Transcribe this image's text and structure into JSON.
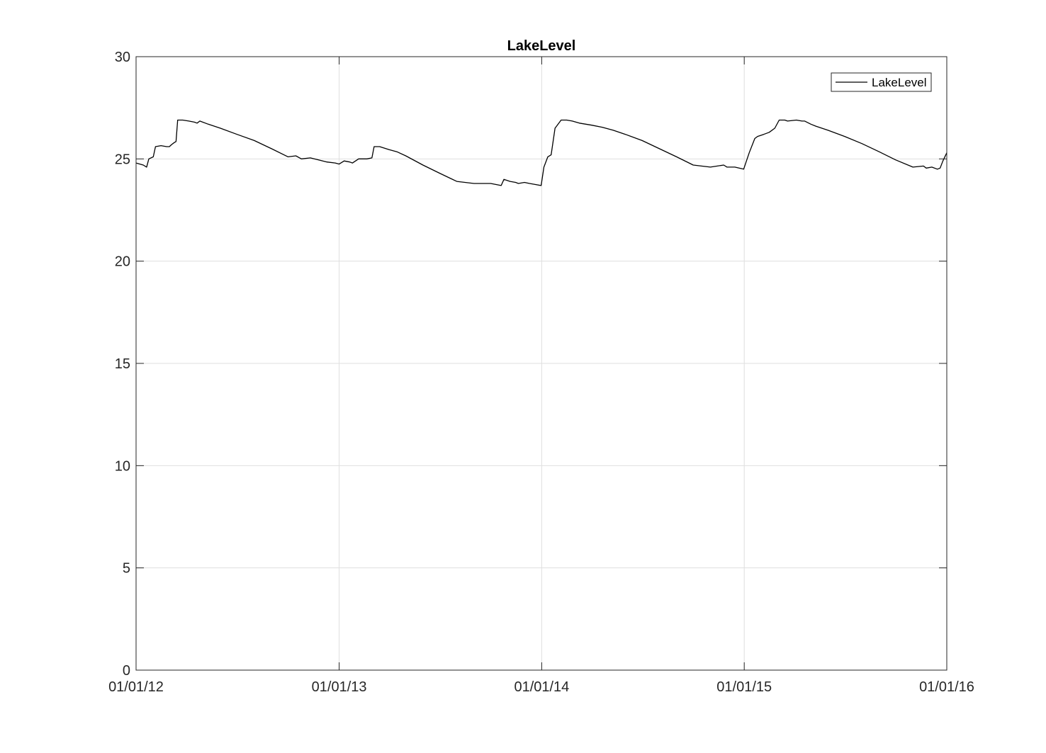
{
  "chart_data": {
    "type": "line",
    "title": "LakeLevel",
    "xlabel": "",
    "ylabel": "",
    "x_type": "date",
    "xlim": [
      "2012-01-01",
      "2016-01-01"
    ],
    "ylim": [
      0,
      30
    ],
    "xticks": [
      "2012-01-01",
      "2013-01-01",
      "2014-01-01",
      "2015-01-01",
      "2016-01-01"
    ],
    "xtick_labels": [
      "01/01/12",
      "01/01/13",
      "01/01/14",
      "01/01/15",
      "01/01/16"
    ],
    "yticks": [
      0,
      5,
      10,
      15,
      20,
      25,
      30
    ],
    "ytick_labels": [
      "0",
      "5",
      "10",
      "15",
      "20",
      "25",
      "30"
    ],
    "grid": true,
    "legend": {
      "placement": "top-right",
      "entries": [
        "LakeLevel"
      ]
    },
    "series": [
      {
        "name": "LakeLevel",
        "color": "#000000",
        "x": [
          "2012-01-01",
          "2012-01-14",
          "2012-01-20",
          "2012-01-24",
          "2012-02-01",
          "2012-02-05",
          "2012-02-15",
          "2012-02-25",
          "2012-03-01",
          "2012-03-05",
          "2012-03-10",
          "2012-03-13",
          "2012-03-16",
          "2012-03-25",
          "2012-04-05",
          "2012-04-15",
          "2012-04-20",
          "2012-04-25",
          "2012-05-10",
          "2012-06-01",
          "2012-07-01",
          "2012-08-01",
          "2012-09-01",
          "2012-10-01",
          "2012-10-15",
          "2012-10-25",
          "2012-11-10",
          "2012-11-25",
          "2012-12-10",
          "2012-12-25",
          "2013-01-01",
          "2013-01-10",
          "2013-01-20",
          "2013-01-25",
          "2013-02-05",
          "2013-02-20",
          "2013-03-01",
          "2013-03-05",
          "2013-03-15",
          "2013-04-01",
          "2013-04-15",
          "2013-05-01",
          "2013-06-01",
          "2013-07-01",
          "2013-08-01",
          "2013-09-01",
          "2013-10-01",
          "2013-10-20",
          "2013-10-25",
          "2013-11-05",
          "2013-11-15",
          "2013-11-20",
          "2013-12-01",
          "2013-12-10",
          "2013-12-20",
          "2013-12-31",
          "2014-01-05",
          "2014-01-12",
          "2014-01-18",
          "2014-01-25",
          "2014-02-05",
          "2014-02-15",
          "2014-02-25",
          "2014-03-10",
          "2014-04-01",
          "2014-04-20",
          "2014-05-10",
          "2014-06-01",
          "2014-07-01",
          "2014-08-01",
          "2014-09-01",
          "2014-10-01",
          "2014-11-01",
          "2014-11-25",
          "2014-12-01",
          "2014-12-15",
          "2014-12-31",
          "2015-01-05",
          "2015-01-10",
          "2015-01-20",
          "2015-01-25",
          "2015-02-05",
          "2015-02-15",
          "2015-02-25",
          "2015-03-05",
          "2015-03-15",
          "2015-03-20",
          "2015-04-05",
          "2015-04-15",
          "2015-04-20",
          "2015-05-01",
          "2015-05-10",
          "2015-06-01",
          "2015-07-01",
          "2015-08-01",
          "2015-09-01",
          "2015-10-01",
          "2015-11-01",
          "2015-11-20",
          "2015-11-25",
          "2015-12-05",
          "2015-12-15",
          "2015-12-20",
          "2015-12-25",
          "2016-01-01"
        ],
        "y": [
          24.8,
          24.7,
          24.6,
          25.0,
          25.1,
          25.6,
          25.65,
          25.6,
          25.6,
          25.7,
          25.8,
          25.85,
          26.9,
          26.9,
          26.85,
          26.8,
          26.75,
          26.85,
          26.7,
          26.5,
          26.2,
          25.9,
          25.5,
          25.1,
          25.15,
          25.0,
          25.05,
          24.95,
          24.85,
          24.8,
          24.75,
          24.9,
          24.85,
          24.8,
          25.0,
          25.0,
          25.05,
          25.6,
          25.6,
          25.45,
          25.35,
          25.15,
          24.7,
          24.3,
          23.9,
          23.8,
          23.8,
          23.7,
          24.0,
          23.9,
          23.85,
          23.8,
          23.85,
          23.8,
          23.75,
          23.7,
          24.6,
          25.1,
          25.2,
          26.5,
          26.9,
          26.9,
          26.85,
          26.75,
          26.65,
          26.55,
          26.4,
          26.2,
          25.9,
          25.5,
          25.1,
          24.7,
          24.6,
          24.7,
          24.6,
          24.6,
          24.5,
          24.9,
          25.3,
          26.0,
          26.1,
          26.2,
          26.3,
          26.5,
          26.9,
          26.9,
          26.85,
          26.9,
          26.85,
          26.85,
          26.7,
          26.6,
          26.4,
          26.1,
          25.75,
          25.35,
          24.95,
          24.6,
          24.65,
          24.55,
          24.6,
          24.5,
          24.55,
          24.9,
          25.3
        ]
      }
    ]
  }
}
